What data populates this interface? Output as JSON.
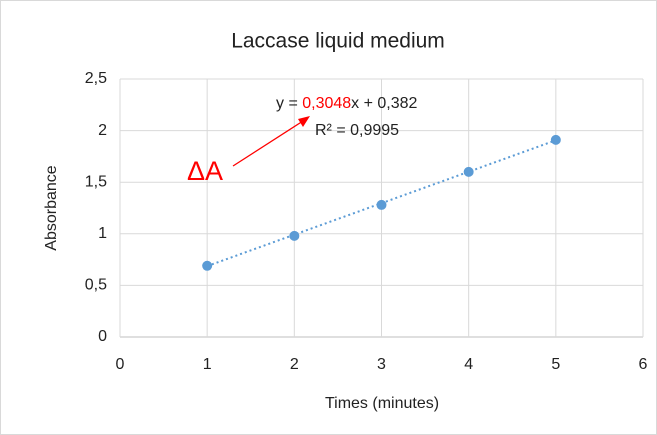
{
  "chart_data": {
    "type": "scatter",
    "title": "Laccase liquid medium",
    "x_label": "Times (minutes)",
    "y_label": "Absorbance",
    "series": [
      {
        "color": "#5b9bd5",
        "x": [
          1,
          2,
          3,
          4,
          5
        ],
        "values": [
          0.69,
          0.98,
          1.28,
          1.6,
          1.91
        ]
      }
    ],
    "trendline": {
      "color": "#5b9bd5",
      "equation_parts": [
        "y = ",
        "x + "
      ],
      "slope": {
        "value": 0.3048,
        "label": "0,3048"
      },
      "intercept": {
        "value": 0.382,
        "label": "0,382"
      },
      "r2_label": "R² = 0,9995",
      "x_range": [
        1,
        5
      ]
    },
    "annotation": {
      "text": "ΔA",
      "color": "#ff0000"
    },
    "xlim": [
      0,
      6
    ],
    "xticks": [
      0,
      1,
      2,
      3,
      4,
      5,
      6
    ],
    "ylim": [
      0,
      2.5
    ],
    "yticks": [
      0,
      {
        "value": 0.5,
        "label": "0,5"
      },
      1,
      {
        "value": 1.5,
        "label": "1,5"
      },
      2,
      {
        "value": 2.5,
        "label": "2,5"
      }
    ],
    "grid": true
  }
}
